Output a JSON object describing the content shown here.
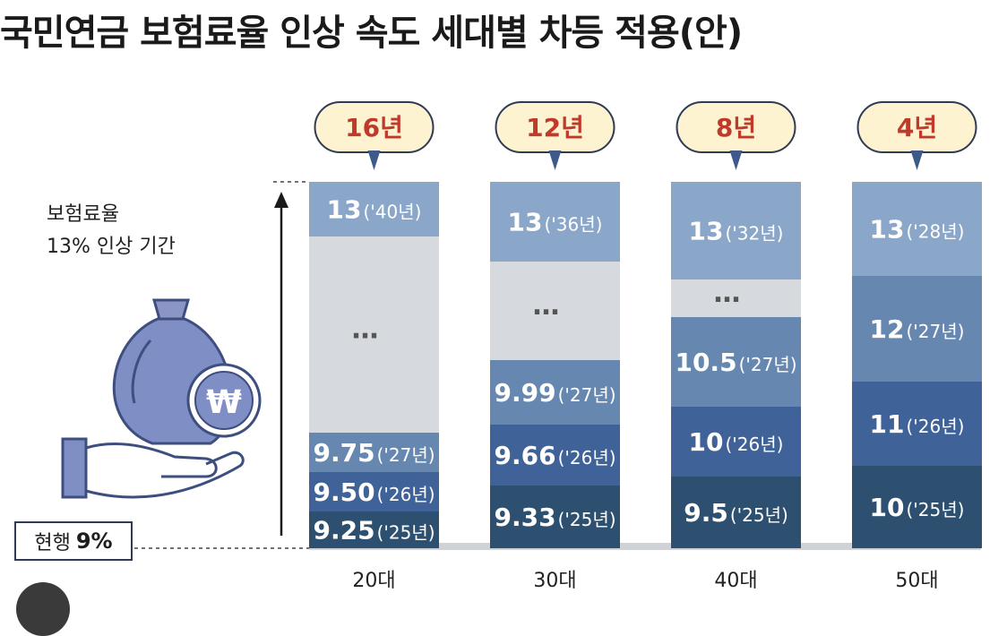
{
  "title": "국민연금 보험료율 인상 속도 세대별 차등 적용(안)",
  "ylabel_line1": "보험료율",
  "ylabel_line2": "13% 인상 기간",
  "current_label": "현행",
  "current_value": "9%",
  "colors": {
    "top": "#8aa6c8",
    "ellipsis": "#d6d9de",
    "mid": "#6688b0",
    "deep": "#3f6298",
    "darkest": "#2d5070",
    "badge_fill": "#fdf3d0",
    "badge_text": "#c0392b",
    "icon": "#6f7fb5"
  },
  "chart_data": {
    "type": "bar",
    "categories": [
      "20대",
      "30대",
      "40대",
      "50대"
    ],
    "periods": [
      "16년",
      "12년",
      "8년",
      "4년"
    ],
    "ellipsis": "…",
    "segments": [
      [
        {
          "value": "9.25",
          "year": "('25년)"
        },
        {
          "value": "9.50",
          "year": "('26년)"
        },
        {
          "value": "9.75",
          "year": "('27년)"
        },
        {
          "value": "…",
          "year": ""
        },
        {
          "value": "13",
          "year": "('40년)"
        }
      ],
      [
        {
          "value": "9.33",
          "year": "('25년)"
        },
        {
          "value": "9.66",
          "year": "('26년)"
        },
        {
          "value": "9.99",
          "year": "('27년)"
        },
        {
          "value": "…",
          "year": ""
        },
        {
          "value": "13",
          "year": "('36년)"
        }
      ],
      [
        {
          "value": "9.5",
          "year": "('25년)"
        },
        {
          "value": "10",
          "year": "('26년)"
        },
        {
          "value": "10.5",
          "year": "('27년)"
        },
        {
          "value": "…",
          "year": ""
        },
        {
          "value": "13",
          "year": "('32년)"
        }
      ],
      [
        {
          "value": "10",
          "year": "('25년)"
        },
        {
          "value": "11",
          "year": "('26년)"
        },
        {
          "value": "12",
          "year": "('27년)"
        },
        {
          "value": "13",
          "year": "('28년)"
        }
      ]
    ]
  }
}
